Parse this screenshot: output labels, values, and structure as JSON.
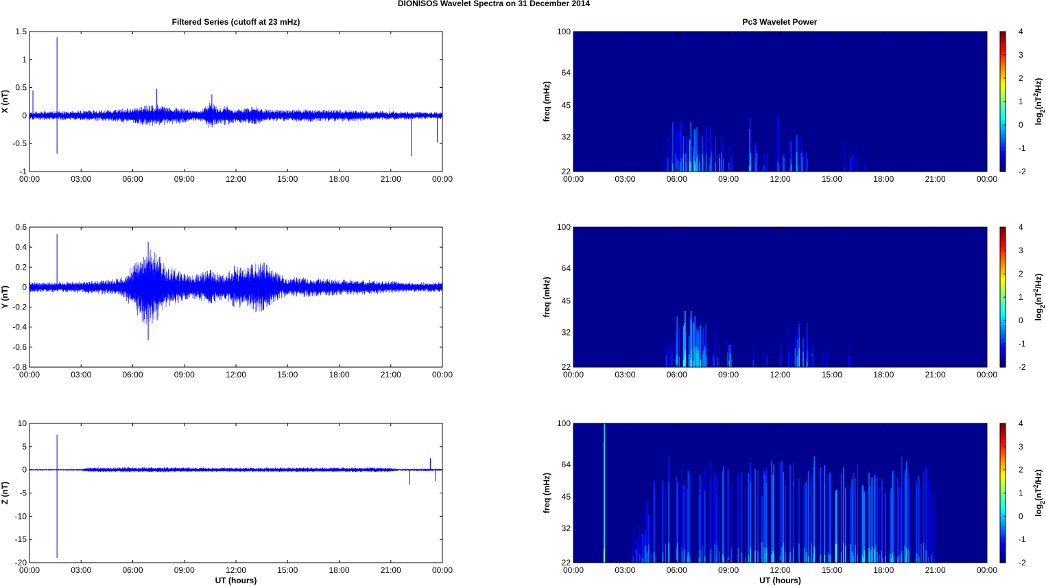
{
  "figure": {
    "title": "DIONISOS Wavelet Spectra on 31 December  2014",
    "left_title": "Filtered Series (cutoff at 23 mHz)",
    "right_title": "Pc3 Wavelet Power",
    "x_label": "UT (hours)"
  },
  "colors": {
    "trace": "#0000ff",
    "background": "#00008f",
    "colormap": "jet"
  },
  "chart_data": [
    {
      "type": "line",
      "panel": "X",
      "ylabel": "X (nT)",
      "xlabel": "",
      "x_ticks": [
        "00:00",
        "03:00",
        "06:00",
        "09:00",
        "12:00",
        "15:00",
        "18:00",
        "21:00",
        "00:00"
      ],
      "y_ticks": [
        "1.5",
        "1",
        "0.5",
        "0",
        "-0.5",
        "-1"
      ],
      "ylim": [
        -1,
        1.5
      ],
      "xlim_hours": [
        0,
        24
      ],
      "grid": false,
      "envelope": {
        "x_hours": [
          0,
          1,
          2,
          3,
          4,
          5,
          6,
          6.5,
          7,
          7.5,
          8,
          8.5,
          9,
          9.5,
          10,
          10.5,
          11,
          11.5,
          12,
          12.5,
          13,
          13.5,
          14,
          15,
          16,
          17,
          18,
          19,
          20,
          21,
          22,
          23,
          24
        ],
        "amplitude": [
          0.08,
          0.08,
          0.08,
          0.09,
          0.1,
          0.11,
          0.15,
          0.17,
          0.2,
          0.2,
          0.16,
          0.15,
          0.13,
          0.1,
          0.1,
          0.25,
          0.15,
          0.18,
          0.12,
          0.14,
          0.17,
          0.13,
          0.11,
          0.1,
          0.12,
          0.1,
          0.11,
          0.1,
          0.08,
          0.08,
          0.07,
          0.06,
          0.06
        ]
      },
      "spikes": [
        {
          "x_hours": 1.6,
          "y": 1.4
        },
        {
          "x_hours": 1.6,
          "y": -0.68
        },
        {
          "x_hours": 0.2,
          "y": 0.45
        },
        {
          "x_hours": 22.2,
          "y": -0.72
        },
        {
          "x_hours": 23.7,
          "y": -0.48
        },
        {
          "x_hours": 7.4,
          "y": 0.48
        },
        {
          "x_hours": 10.6,
          "y": 0.38
        }
      ]
    },
    {
      "type": "line",
      "panel": "Y",
      "ylabel": "Y (nT)",
      "xlabel": "",
      "x_ticks": [
        "00:00",
        "03:00",
        "06:00",
        "09:00",
        "12:00",
        "15:00",
        "18:00",
        "21:00",
        "00:00"
      ],
      "y_ticks": [
        "0.6",
        "0.4",
        "0.2",
        "0",
        "-0.2",
        "-0.4",
        "-0.6",
        "-0.8"
      ],
      "ylim": [
        -0.8,
        0.6
      ],
      "xlim_hours": [
        0,
        24
      ],
      "grid": false,
      "envelope": {
        "x_hours": [
          0,
          1,
          2,
          3,
          4,
          5,
          5.5,
          6,
          6.5,
          7,
          7.5,
          8,
          8.5,
          9,
          9.5,
          10,
          10.5,
          11,
          11.5,
          12,
          12.5,
          13,
          13.5,
          14,
          14.5,
          15,
          16,
          17,
          18,
          19,
          20,
          21,
          22,
          23,
          24
        ],
        "amplitude": [
          0.05,
          0.05,
          0.05,
          0.06,
          0.07,
          0.08,
          0.12,
          0.22,
          0.35,
          0.42,
          0.32,
          0.22,
          0.18,
          0.13,
          0.12,
          0.14,
          0.2,
          0.14,
          0.13,
          0.24,
          0.17,
          0.25,
          0.27,
          0.2,
          0.13,
          0.1,
          0.1,
          0.09,
          0.08,
          0.08,
          0.07,
          0.06,
          0.05,
          0.05,
          0.05
        ]
      },
      "spikes": [
        {
          "x_hours": 1.6,
          "y": 0.53
        },
        {
          "x_hours": 6.9,
          "y": 0.45
        },
        {
          "x_hours": 6.9,
          "y": -0.53
        }
      ]
    },
    {
      "type": "line",
      "panel": "Z",
      "ylabel": "Z (nT)",
      "xlabel": "UT (hours)",
      "x_ticks": [
        "00:00",
        "03:00",
        "06:00",
        "09:00",
        "12:00",
        "15:00",
        "18:00",
        "21:00",
        "00:00"
      ],
      "y_ticks": [
        "10",
        "5",
        "0",
        "-5",
        "-10",
        "-15",
        "-20"
      ],
      "ylim": [
        -20,
        10
      ],
      "xlim_hours": [
        0,
        24
      ],
      "grid": false,
      "envelope": {
        "x_hours": [
          0,
          1,
          2,
          3,
          3.4,
          4,
          6,
          8,
          10,
          12,
          14,
          16,
          18,
          20,
          21,
          21.5,
          22,
          23,
          24
        ],
        "amplitude": [
          0.15,
          0.15,
          0.15,
          0.2,
          0.5,
          0.5,
          0.55,
          0.55,
          0.5,
          0.5,
          0.5,
          0.5,
          0.5,
          0.55,
          0.45,
          0.2,
          0.2,
          0.3,
          0.2
        ]
      },
      "spikes": [
        {
          "x_hours": 1.6,
          "y": 7.5
        },
        {
          "x_hours": 1.6,
          "y": -19
        },
        {
          "x_hours": 22.1,
          "y": -3.2
        },
        {
          "x_hours": 23.3,
          "y": 2.5
        },
        {
          "x_hours": 23.6,
          "y": -2.4
        }
      ]
    },
    {
      "type": "heatmap",
      "panel": "X",
      "ylabel": "freq (mHz)",
      "xlabel": "",
      "x_ticks": [
        "00:00",
        "03:00",
        "06:00",
        "09:00",
        "12:00",
        "15:00",
        "18:00",
        "21:00",
        "00:00"
      ],
      "y_ticks": [
        "100",
        "64",
        "45",
        "32",
        "22"
      ],
      "y_scale": "log",
      "ylim": [
        22,
        100
      ],
      "xlim_hours": [
        0,
        24
      ],
      "colorbar": {
        "label": "log2(nT^2/Hz)",
        "ticks": [
          "4",
          "3",
          "2",
          "1",
          "0",
          "-1",
          "-2"
        ],
        "range": [
          -2,
          4
        ]
      },
      "activity": {
        "x_hours": [
          5.3,
          5.6,
          5.9,
          6.1,
          6.3,
          6.6,
          6.8,
          7.0,
          7.2,
          7.4,
          7.6,
          7.9,
          8.1,
          8.4,
          8.6,
          9.1,
          10.2,
          10.4,
          10.6,
          11.1,
          11.8,
          12.3,
          12.6,
          12.9,
          13.1,
          13.4,
          15.8,
          16.2,
          16.9
        ],
        "level": [
          -1.4,
          -1.0,
          -0.6,
          -0.8,
          -0.4,
          -0.5,
          0.2,
          -0.3,
          -0.7,
          -0.5,
          -0.8,
          -0.6,
          -0.3,
          -0.9,
          -0.6,
          -1.0,
          -0.4,
          0.0,
          -0.7,
          -1.2,
          -1.0,
          -0.5,
          -0.8,
          -0.6,
          -0.8,
          -1.2,
          -1.1,
          -1.0,
          -1.5
        ],
        "top_freq_mHz": [
          28,
          34,
          40,
          38,
          36,
          34,
          38,
          36,
          32,
          34,
          36,
          33,
          37,
          31,
          32,
          30,
          40,
          36,
          34,
          30,
          42,
          33,
          36,
          38,
          34,
          30,
          32,
          30,
          30
        ]
      }
    },
    {
      "type": "heatmap",
      "panel": "Y",
      "ylabel": "freq (mHz)",
      "xlabel": "",
      "x_ticks": [
        "00:00",
        "03:00",
        "06:00",
        "09:00",
        "12:00",
        "15:00",
        "18:00",
        "21:00",
        "00:00"
      ],
      "y_ticks": [
        "100",
        "64",
        "45",
        "32",
        "22"
      ],
      "y_scale": "log",
      "ylim": [
        22,
        100
      ],
      "xlim_hours": [
        0,
        24
      ],
      "colorbar": {
        "label": "log2(nT^2/Hz)",
        "ticks": [
          "4",
          "3",
          "2",
          "1",
          "0",
          "-1",
          "-2"
        ],
        "range": [
          -2,
          4
        ]
      },
      "activity": {
        "x_hours": [
          5.5,
          5.8,
          6.1,
          6.3,
          6.5,
          6.7,
          6.9,
          7.1,
          7.3,
          7.5,
          7.7,
          8.0,
          8.4,
          9.1,
          10.5,
          11.2,
          11.9,
          12.5,
          13.0,
          13.2,
          13.4,
          13.7,
          14.5,
          15.9
        ],
        "level": [
          -1.3,
          -0.8,
          -0.4,
          0.2,
          0.5,
          0.0,
          0.4,
          -0.2,
          0.1,
          -0.4,
          -0.6,
          -0.8,
          -0.9,
          -0.6,
          -1.2,
          -1.3,
          -1.4,
          -1.1,
          -0.6,
          -0.2,
          -0.8,
          -1.2,
          -1.4,
          -1.4
        ],
        "top_freq_mHz": [
          30,
          34,
          38,
          40,
          42,
          40,
          41,
          39,
          38,
          36,
          34,
          33,
          32,
          30,
          30,
          28,
          30,
          34,
          38,
          40,
          36,
          32,
          33,
          28
        ]
      }
    },
    {
      "type": "heatmap",
      "panel": "Z",
      "ylabel": "freq (mHz)",
      "xlabel": "UT (hours)",
      "x_ticks": [
        "00:00",
        "03:00",
        "06:00",
        "09:00",
        "12:00",
        "15:00",
        "18:00",
        "21:00",
        "00:00"
      ],
      "y_ticks": [
        "100",
        "64",
        "45",
        "32",
        "22"
      ],
      "y_scale": "log",
      "ylim": [
        22,
        100
      ],
      "xlim_hours": [
        0,
        24
      ],
      "colorbar": {
        "label": "log2(nT^2/Hz)",
        "ticks": [
          "4",
          "3",
          "2",
          "1",
          "0",
          "-1",
          "-2"
        ],
        "range": [
          -2,
          4
        ]
      },
      "activity": {
        "x_hours": [
          1.6,
          3.6,
          4.0,
          4.4,
          4.8,
          5.2,
          5.6,
          6.0,
          6.4,
          6.8,
          7.2,
          7.6,
          8.0,
          8.4,
          8.8,
          9.2,
          9.6,
          10.0,
          10.4,
          10.8,
          11.2,
          11.6,
          12.0,
          12.4,
          12.8,
          13.2,
          13.6,
          14.0,
          14.4,
          14.8,
          15.2,
          15.6,
          16.0,
          16.4,
          16.8,
          17.2,
          17.6,
          18.0,
          18.4,
          18.8,
          19.2,
          19.6,
          20.0,
          20.4,
          20.8
        ],
        "level": [
          0.8,
          -1.2,
          -0.8,
          -0.7,
          -0.6,
          -0.5,
          -0.4,
          -0.3,
          -0.6,
          -0.5,
          -0.4,
          -0.6,
          -0.7,
          -0.5,
          -0.4,
          -0.6,
          -0.5,
          -0.4,
          -0.2,
          -0.3,
          -0.4,
          -0.3,
          -0.2,
          -0.4,
          -0.3,
          -0.4,
          -0.3,
          -0.2,
          -0.1,
          -0.3,
          0.2,
          -0.1,
          -0.3,
          -0.2,
          0.0,
          -0.2,
          -0.4,
          -0.3,
          0.0,
          -0.3,
          -0.4,
          -0.3,
          -0.5,
          -0.7,
          -1.0
        ],
        "top_freq_mHz": [
          100,
          32,
          40,
          46,
          55,
          62,
          70,
          58,
          64,
          60,
          58,
          62,
          66,
          60,
          64,
          58,
          62,
          66,
          70,
          60,
          64,
          72,
          68,
          64,
          66,
          62,
          64,
          70,
          66,
          68,
          60,
          64,
          62,
          66,
          60,
          64,
          58,
          62,
          60,
          64,
          70,
          62,
          58,
          66,
          48
        ]
      }
    }
  ]
}
